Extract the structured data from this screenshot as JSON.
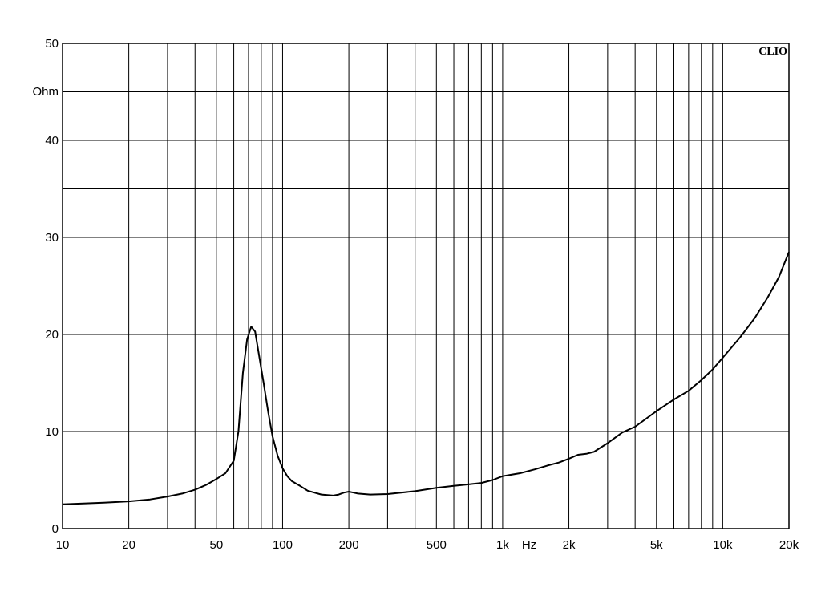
{
  "chart_data": {
    "type": "line",
    "brand": "CLIO",
    "y_unit": "Ohm",
    "x_unit": "Hz",
    "xscale": "log",
    "xlim": [
      10,
      20000
    ],
    "ylim": [
      0,
      50
    ],
    "grid": true,
    "y_ticks": [
      {
        "value": 0,
        "label": "0"
      },
      {
        "value": 10,
        "label": "10"
      },
      {
        "value": 20,
        "label": "20"
      },
      {
        "value": 30,
        "label": "30"
      },
      {
        "value": 40,
        "label": "40"
      },
      {
        "value": 50,
        "label": "50"
      }
    ],
    "y_minor_grid": [
      5,
      15,
      25,
      35,
      45
    ],
    "x_ticks": [
      {
        "value": 10,
        "label": "10"
      },
      {
        "value": 20,
        "label": "20"
      },
      {
        "value": 50,
        "label": "50"
      },
      {
        "value": 100,
        "label": "100"
      },
      {
        "value": 200,
        "label": "200"
      },
      {
        "value": 500,
        "label": "500"
      },
      {
        "value": 1000,
        "label": "1k"
      },
      {
        "value": 2000,
        "label": "2k"
      },
      {
        "value": 5000,
        "label": "5k"
      },
      {
        "value": 10000,
        "label": "10k"
      },
      {
        "value": 20000,
        "label": "20k"
      }
    ],
    "x_grid": [
      10,
      20,
      30,
      40,
      50,
      60,
      70,
      80,
      90,
      100,
      200,
      300,
      400,
      500,
      600,
      700,
      800,
      900,
      1000,
      2000,
      3000,
      4000,
      5000,
      6000,
      7000,
      8000,
      9000,
      10000,
      20000
    ],
    "line_color": "#000000",
    "series": [
      {
        "x": [
          10,
          15,
          20,
          25,
          30,
          35,
          40,
          45,
          50,
          55,
          60,
          63,
          66,
          69,
          72,
          75,
          78,
          82,
          86,
          90,
          95,
          100,
          105,
          110,
          120,
          130,
          150,
          170,
          180,
          190,
          200,
          210,
          220,
          250,
          300,
          400,
          500,
          600,
          700,
          800,
          900,
          1000,
          1200,
          1400,
          1600,
          1800,
          2000,
          2200,
          2400,
          2600,
          3000,
          3500,
          4000,
          5000,
          6000,
          7000,
          8000,
          9000,
          10000,
          12000,
          14000,
          16000,
          18000,
          20000
        ],
        "y": [
          2.5,
          2.65,
          2.8,
          3.0,
          3.3,
          3.6,
          4.0,
          4.5,
          5.1,
          5.7,
          7.0,
          10.0,
          16.0,
          19.5,
          20.8,
          20.3,
          18.0,
          15.0,
          12.0,
          9.5,
          7.5,
          6.2,
          5.4,
          4.9,
          4.4,
          3.9,
          3.5,
          3.4,
          3.5,
          3.7,
          3.8,
          3.7,
          3.6,
          3.5,
          3.55,
          3.85,
          4.2,
          4.4,
          4.55,
          4.7,
          5.0,
          5.4,
          5.7,
          6.1,
          6.5,
          6.8,
          7.2,
          7.6,
          7.7,
          7.9,
          8.8,
          9.9,
          10.5,
          12.1,
          13.3,
          14.2,
          15.3,
          16.4,
          17.6,
          19.7,
          21.7,
          23.8,
          25.9,
          28.5
        ]
      }
    ]
  }
}
